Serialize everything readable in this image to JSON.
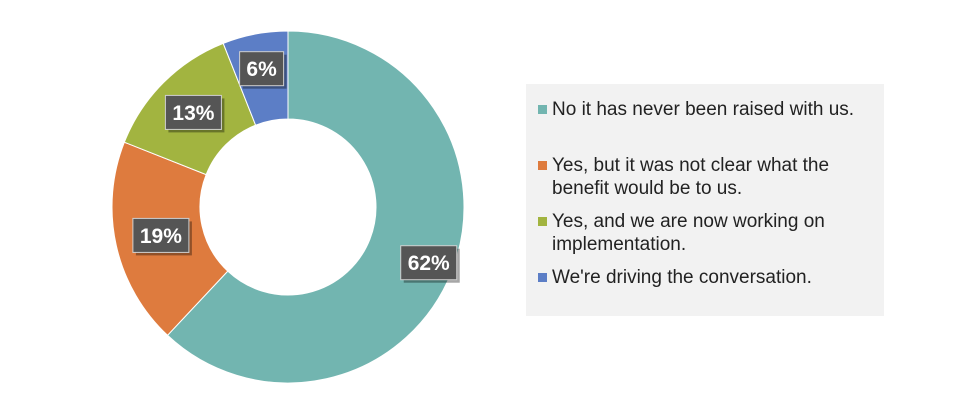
{
  "chart_data": {
    "type": "pie",
    "title": "",
    "donut": true,
    "legend_position": "right",
    "slices": [
      {
        "label": "No it has never been raised with us.",
        "value": 62,
        "display": "62%",
        "color": "#72b5b0"
      },
      {
        "label": "Yes, but it was not clear what the benefit would be to us.",
        "value": 19,
        "display": "19%",
        "color": "#de7b3e"
      },
      {
        "label": "Yes, and we are now working on implementation.",
        "value": 13,
        "display": "13%",
        "color": "#a2b440"
      },
      {
        "label": "We're driving the conversation.",
        "value": 6,
        "display": "6%",
        "color": "#5c7ec6"
      }
    ]
  }
}
